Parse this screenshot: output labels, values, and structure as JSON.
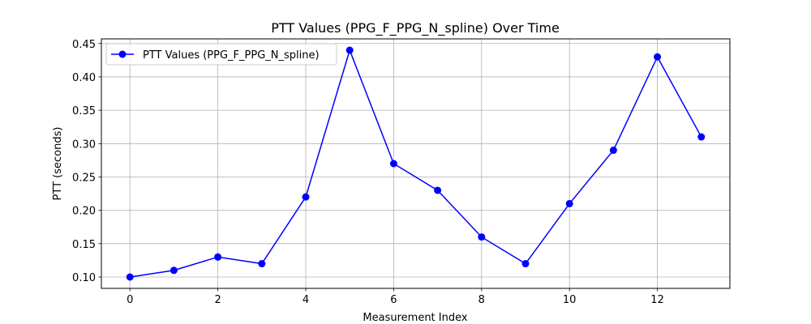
{
  "chart_data": {
    "type": "line",
    "title": "PTT Values (PPG_F_PPG_N_spline) Over Time",
    "xlabel": "Measurement Index",
    "ylabel": "PTT (seconds)",
    "x": [
      0,
      1,
      2,
      3,
      4,
      5,
      6,
      7,
      8,
      9,
      10,
      11,
      12,
      13
    ],
    "series": [
      {
        "name": "PTT Values (PPG_F_PPG_N_spline)",
        "color": "#0000ff",
        "marker": "circle",
        "values": [
          0.1,
          0.11,
          0.13,
          0.12,
          0.22,
          0.44,
          0.27,
          0.23,
          0.16,
          0.12,
          0.21,
          0.29,
          0.43,
          0.31
        ]
      }
    ],
    "xlim": [
      -0.65,
      13.65
    ],
    "ylim": [
      0.083,
      0.457
    ],
    "xticks": [
      "0",
      "2",
      "4",
      "6",
      "8",
      "10",
      "12"
    ],
    "yticks": [
      "0.10",
      "0.15",
      "0.20",
      "0.25",
      "0.30",
      "0.35",
      "0.40",
      "0.45"
    ],
    "grid": true,
    "legend_position": "top-left",
    "grid_color": "#b0b0b0"
  }
}
